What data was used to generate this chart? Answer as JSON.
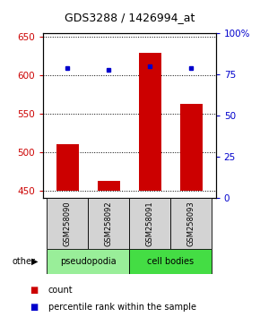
{
  "title": "GDS3288 / 1426994_at",
  "samples": [
    "GSM258090",
    "GSM258092",
    "GSM258091",
    "GSM258093"
  ],
  "groups": [
    "pseudopodia",
    "pseudopodia",
    "cell bodies",
    "cell bodies"
  ],
  "counts": [
    510,
    463,
    630,
    563
  ],
  "percentiles": [
    79,
    78,
    80,
    79
  ],
  "ylim_left": [
    440,
    655
  ],
  "ylim_right": [
    0,
    100
  ],
  "yticks_left": [
    450,
    500,
    550,
    600,
    650
  ],
  "yticks_right": [
    0,
    25,
    50,
    75,
    100
  ],
  "bar_color": "#cc0000",
  "dot_color": "#0000cc",
  "group_colors": {
    "pseudopodia": "#99ee99",
    "cell bodies": "#44dd44"
  },
  "bar_bottom": 450,
  "legend_count_color": "#cc0000",
  "legend_pct_color": "#0000cc",
  "tick_label_color_left": "#cc0000",
  "tick_label_color_right": "#0000cc",
  "bar_width": 0.55,
  "group_defs": [
    [
      "pseudopodia",
      0,
      2
    ],
    [
      "cell bodies",
      2,
      4
    ]
  ]
}
